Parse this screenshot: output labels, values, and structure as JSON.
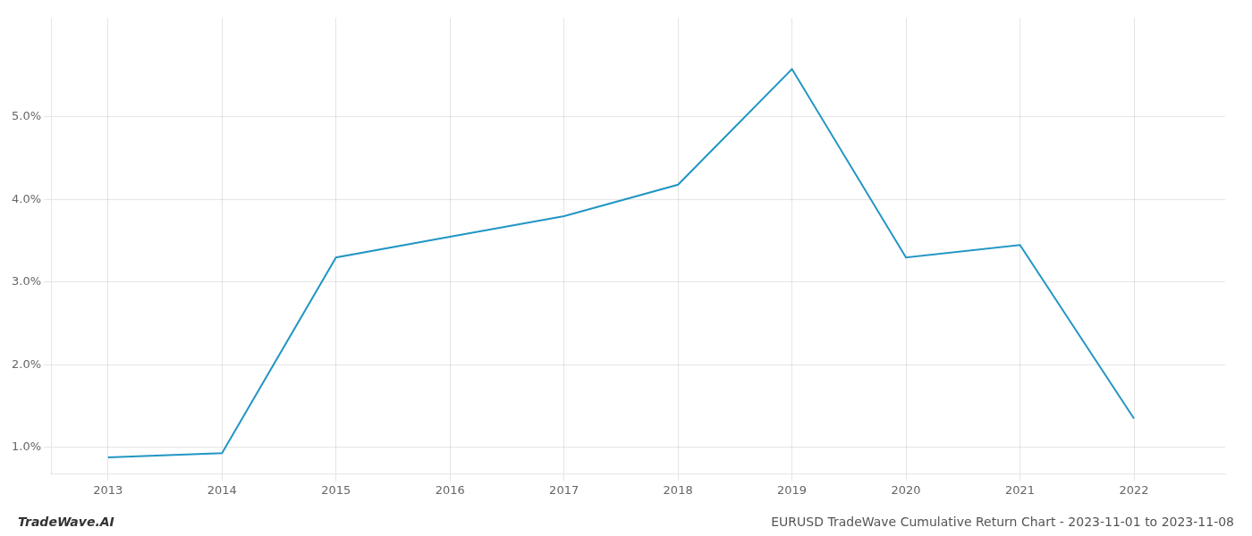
{
  "chart_data": {
    "type": "line",
    "x": [
      2013,
      2014,
      2015,
      2016,
      2017,
      2018,
      2019,
      2020,
      2021,
      2022
    ],
    "values": [
      0.0088,
      0.0093,
      0.033,
      0.0355,
      0.038,
      0.0418,
      0.0558,
      0.033,
      0.0345,
      0.0135
    ],
    "color": "#2196c4",
    "xlim": [
      2012.5,
      2022.8
    ],
    "ylim": [
      0.0068,
      0.062
    ],
    "xticks": [
      2013,
      2014,
      2015,
      2016,
      2017,
      2018,
      2019,
      2020,
      2021,
      2022
    ],
    "yticks": [
      {
        "value": 0.01,
        "label": "1.0%"
      },
      {
        "value": 0.02,
        "label": "2.0%"
      },
      {
        "value": 0.03,
        "label": "3.0%"
      },
      {
        "value": 0.04,
        "label": "4.0%"
      },
      {
        "value": 0.05,
        "label": "5.0%"
      }
    ],
    "grid": true,
    "annotations": [
      "TradeWave.AI",
      "EURUSD TradeWave Cumulative Return Chart - 2023-11-01 to 2023-11-08"
    ]
  }
}
